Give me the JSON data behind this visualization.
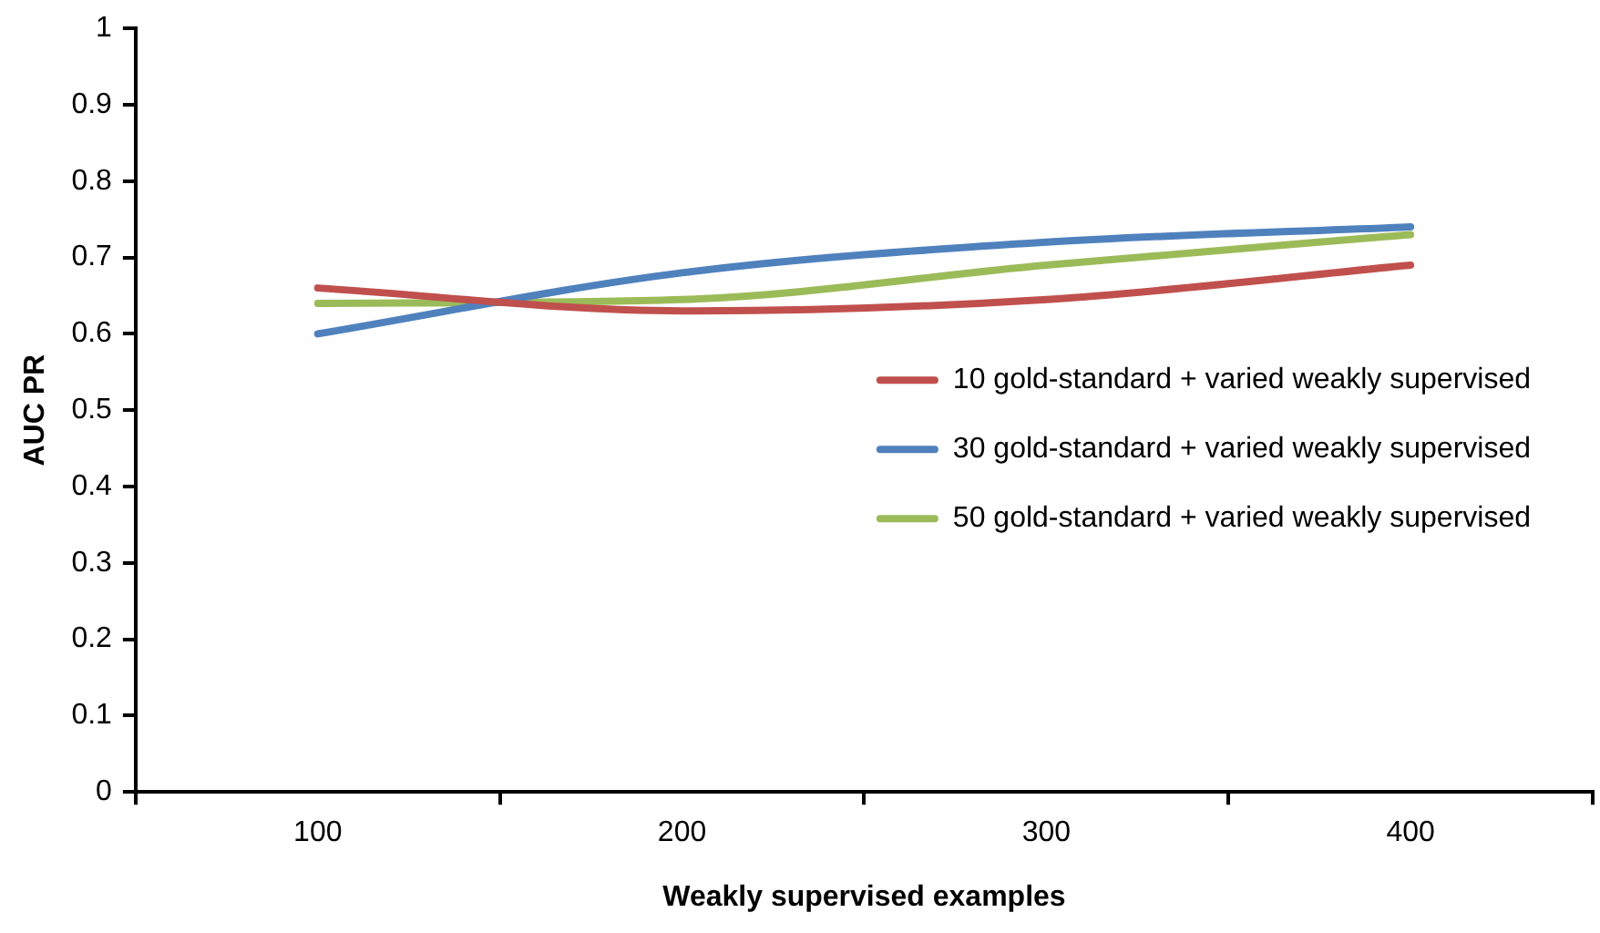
{
  "chart_data": {
    "type": "line",
    "xlabel": "Weakly supervised examples",
    "ylabel": "AUC PR",
    "categories": [
      "100",
      "200",
      "300",
      "400"
    ],
    "series": [
      {
        "name": "10 gold-standard + varied weakly supervised",
        "color": "#c0504d",
        "values": [
          0.66,
          0.63,
          0.645,
          0.69
        ]
      },
      {
        "name": "30 gold-standard + varied weakly supervised",
        "color": "#4f81bd",
        "values": [
          0.6,
          0.68,
          0.72,
          0.74
        ]
      },
      {
        "name": "50 gold-standard + varied weakly supervised",
        "color": "#9bbb59",
        "values": [
          0.64,
          0.645,
          0.69,
          0.73
        ]
      }
    ],
    "ylim": [
      0,
      1
    ],
    "yticks": [
      0,
      0.1,
      0.2,
      0.3,
      0.4,
      0.5,
      0.6,
      0.7,
      0.8,
      0.9,
      1
    ],
    "grid": false,
    "legend": "bottom right",
    "marker": "none",
    "line_style": "solid"
  }
}
